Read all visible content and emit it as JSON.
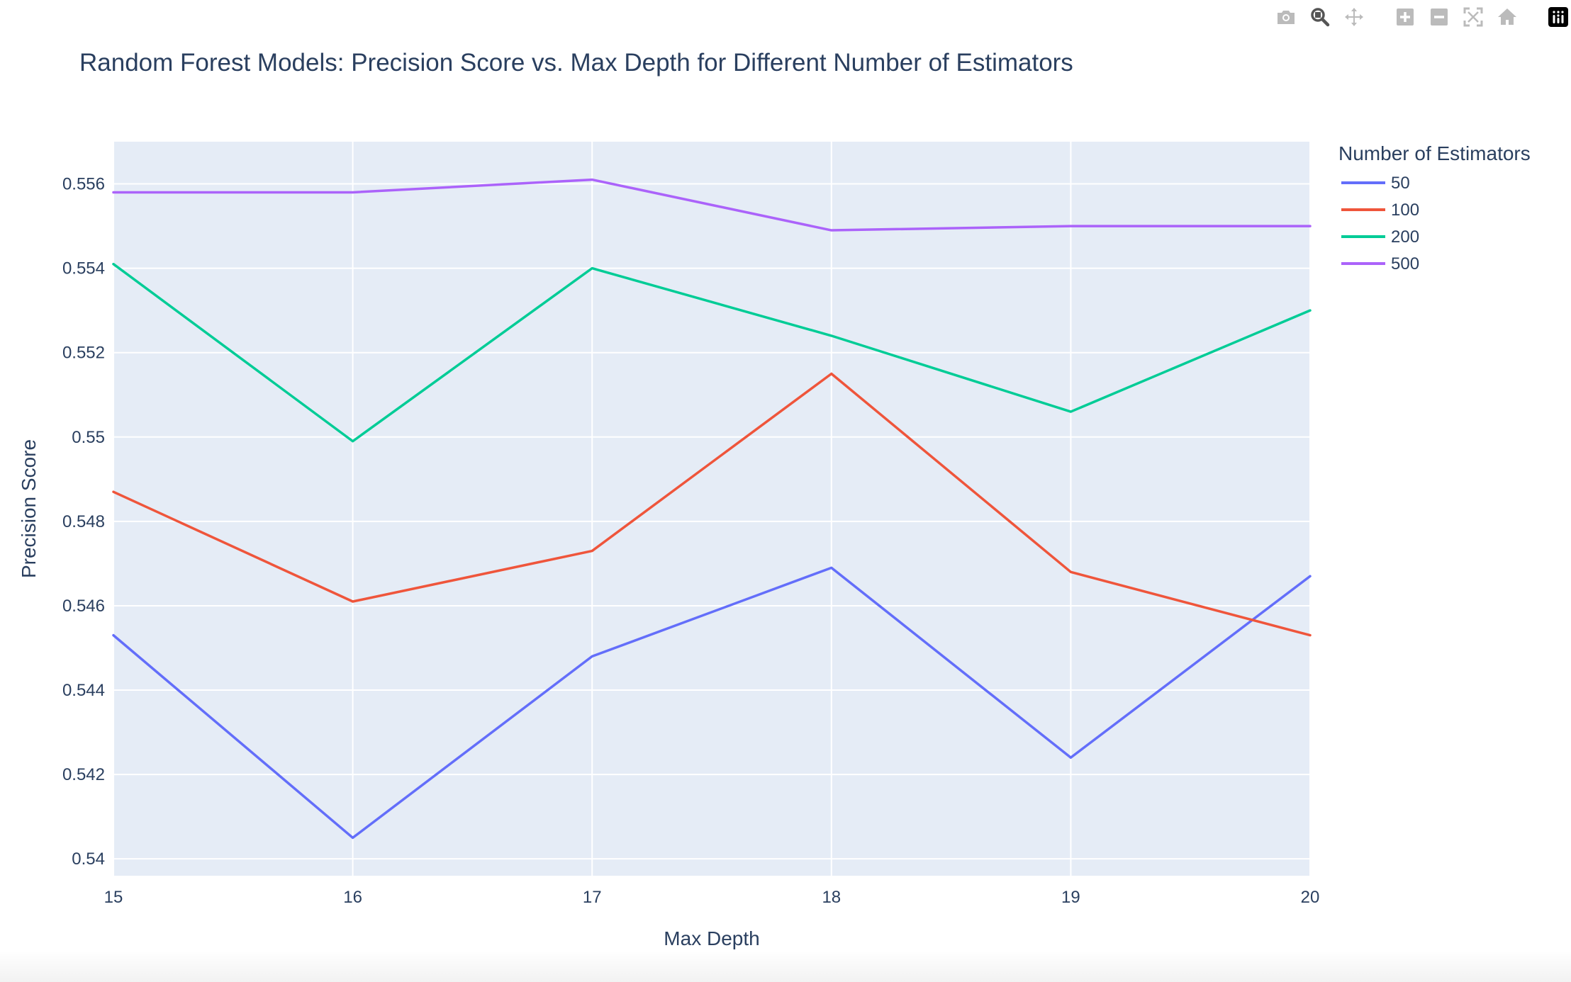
{
  "modebar": {
    "buttons": [
      {
        "icon": "camera-icon",
        "name": "download-plot-button"
      },
      {
        "icon": "zoom-icon",
        "name": "zoom-button",
        "active": true
      },
      {
        "icon": "pan-icon",
        "name": "pan-button"
      },
      {
        "icon": "zoom-in-icon",
        "name": "zoom-in-button"
      },
      {
        "icon": "zoom-out-icon",
        "name": "zoom-out-button"
      },
      {
        "icon": "autoscale-icon",
        "name": "autoscale-button"
      },
      {
        "icon": "home-icon",
        "name": "reset-axes-button"
      },
      {
        "icon": "plotly-logo-icon",
        "name": "plotly-logo-button"
      }
    ]
  },
  "colors": {
    "plot_bg": "#E5ECF6",
    "grid": "#ffffff",
    "text": "#2a3f5f",
    "modebar_icon": "#bbbbbb",
    "modebar_active": "#555555"
  },
  "chart_data": {
    "type": "line",
    "title": "Random Forest Models: Precision Score vs. Max Depth for Different Number of Estimators",
    "xlabel": "Max Depth",
    "ylabel": "Precision Score",
    "x": [
      15,
      16,
      17,
      18,
      19,
      20
    ],
    "xticks": [
      "15",
      "16",
      "17",
      "18",
      "19",
      "20"
    ],
    "yticks": [
      "0.54",
      "0.542",
      "0.544",
      "0.546",
      "0.548",
      "0.55",
      "0.552",
      "0.554",
      "0.556"
    ],
    "xlim": [
      15,
      20
    ],
    "ylim": [
      0.5396,
      0.557
    ],
    "grid": true,
    "legend": {
      "title": "Number of Estimators",
      "placement": "right"
    },
    "series": [
      {
        "name": "50",
        "color": "#636efa",
        "values": [
          0.5453,
          0.5405,
          0.5448,
          0.5469,
          0.5424,
          0.5467
        ]
      },
      {
        "name": "100",
        "color": "#EF553B",
        "values": [
          0.5487,
          0.5461,
          0.5473,
          0.5515,
          0.5468,
          0.5453
        ]
      },
      {
        "name": "200",
        "color": "#00cc96",
        "values": [
          0.5541,
          0.5499,
          0.554,
          0.5524,
          0.5506,
          0.553
        ]
      },
      {
        "name": "500",
        "color": "#ab63fa",
        "values": [
          0.5558,
          0.5558,
          0.5561,
          0.5549,
          0.555,
          0.555
        ]
      }
    ]
  }
}
